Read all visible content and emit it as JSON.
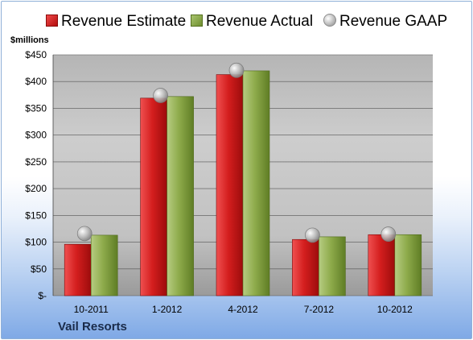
{
  "chart_data": {
    "type": "bar",
    "categories": [
      "10-2011",
      "1-2012",
      "4-2012",
      "7-2012",
      "10-2012"
    ],
    "series": [
      {
        "name": "Revenue Estimate",
        "type": "bar",
        "color": "#d21e1e",
        "values": [
          96,
          369,
          413,
          105,
          114
        ]
      },
      {
        "name": "Revenue Actual",
        "type": "bar",
        "color": "#8fae4c",
        "values": [
          113,
          372,
          420,
          110,
          114
        ]
      },
      {
        "name": "Revenue GAAP",
        "type": "scatter",
        "color": "#b0b0b0",
        "values": [
          116,
          374,
          421,
          113,
          115
        ]
      }
    ],
    "ylabel": "$millions",
    "ylim": [
      0,
      450
    ],
    "yticks": [
      0,
      50,
      100,
      150,
      200,
      250,
      300,
      350,
      400,
      450
    ],
    "ytick_labels": [
      "$-",
      "$50",
      "$100",
      "$150",
      "$200",
      "$250",
      "$300",
      "$350",
      "$400",
      "$450"
    ],
    "grid": true,
    "legend_position": "top",
    "footer": "Vail Resorts"
  }
}
